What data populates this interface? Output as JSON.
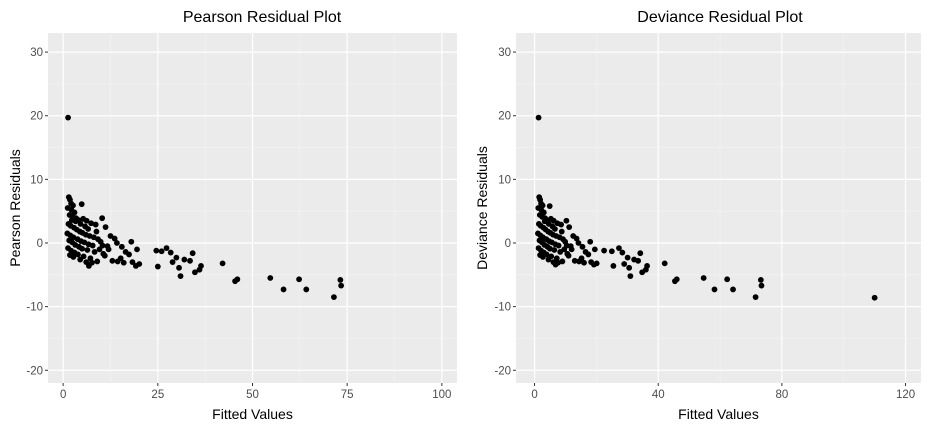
{
  "theme": {
    "panel_background": "#ebebeb",
    "grid_major": "#ffffff",
    "grid_minor": "#f4f4f4",
    "point_color": "#000000",
    "tick_color": "#333333"
  },
  "chart_data": [
    {
      "type": "scatter",
      "title": "Pearson Residual Plot",
      "xlabel": "Fitted Values",
      "ylabel": "Pearson Residuals",
      "xlim": [
        -4,
        104
      ],
      "ylim": [
        -22,
        33
      ],
      "x_ticks": [
        0,
        25,
        50,
        75,
        100
      ],
      "x_tick_labels": [
        "0",
        "25",
        "50",
        "75",
        "100"
      ],
      "y_ticks": [
        -20,
        -10,
        0,
        10,
        20,
        30
      ],
      "y_tick_labels": [
        "-20",
        "-10",
        "0",
        "10",
        "20",
        "30"
      ],
      "grid": true,
      "points": [
        [
          1.3,
          19.7
        ],
        [
          1.5,
          7.2
        ],
        [
          1.8,
          6.8
        ],
        [
          2.1,
          6.2
        ],
        [
          2.6,
          5.9
        ],
        [
          4.9,
          6.1
        ],
        [
          1.2,
          5.5
        ],
        [
          2.2,
          5.2
        ],
        [
          3.0,
          4.8
        ],
        [
          1.7,
          4.4
        ],
        [
          2.5,
          4.1
        ],
        [
          3.4,
          3.9
        ],
        [
          4.1,
          3.6
        ],
        [
          5.3,
          3.8
        ],
        [
          6.2,
          3.5
        ],
        [
          7.4,
          3.1
        ],
        [
          8.6,
          2.9
        ],
        [
          10.3,
          3.9
        ],
        [
          11.2,
          2.5
        ],
        [
          1.4,
          3.0
        ],
        [
          2.0,
          2.7
        ],
        [
          2.9,
          2.4
        ],
        [
          3.6,
          2.1
        ],
        [
          4.4,
          1.8
        ],
        [
          5.1,
          1.6
        ],
        [
          6.0,
          1.3
        ],
        [
          7.0,
          1.1
        ],
        [
          8.1,
          0.9
        ],
        [
          9.2,
          0.6
        ],
        [
          12.5,
          1.1
        ],
        [
          13.6,
          0.7
        ],
        [
          1.1,
          1.5
        ],
        [
          1.9,
          1.2
        ],
        [
          2.7,
          0.9
        ],
        [
          3.8,
          0.6
        ],
        [
          4.7,
          0.3
        ],
        [
          5.6,
          0.1
        ],
        [
          6.7,
          -0.2
        ],
        [
          7.8,
          -0.4
        ],
        [
          9.9,
          0.2
        ],
        [
          11.7,
          -0.5
        ],
        [
          1.6,
          0.4
        ],
        [
          2.4,
          0.1
        ],
        [
          3.2,
          -0.3
        ],
        [
          4.2,
          -0.6
        ],
        [
          5.0,
          -0.9
        ],
        [
          6.4,
          -1.1
        ],
        [
          8.3,
          -1.4
        ],
        [
          10.6,
          -1.7
        ],
        [
          1.3,
          -0.8
        ],
        [
          2.1,
          -1.2
        ],
        [
          3.0,
          -1.5
        ],
        [
          3.9,
          -1.8
        ],
        [
          5.4,
          -2.1
        ],
        [
          7.2,
          -2.4
        ],
        [
          1.8,
          -1.9
        ],
        [
          2.7,
          -2.2
        ],
        [
          4.5,
          -2.6
        ],
        [
          6.1,
          -3.0
        ],
        [
          6.8,
          -3.6
        ],
        [
          7.6,
          -3.1
        ],
        [
          9.0,
          -2.9
        ],
        [
          13.0,
          -2.8
        ],
        [
          14.4,
          -2.9
        ],
        [
          15.2,
          -2.4
        ],
        [
          16.0,
          -3.1
        ],
        [
          18.3,
          -3.0
        ],
        [
          19.2,
          -3.6
        ],
        [
          20.1,
          -3.3
        ],
        [
          16.5,
          -1.4
        ],
        [
          17.4,
          -1.8
        ],
        [
          15.5,
          -0.6
        ],
        [
          14.2,
          0.0
        ],
        [
          19.5,
          -1.0
        ],
        [
          24.6,
          -1.2
        ],
        [
          26.0,
          -1.3
        ],
        [
          27.3,
          -0.8
        ],
        [
          28.4,
          -1.5
        ],
        [
          28.9,
          -3.0
        ],
        [
          25.0,
          -3.7
        ],
        [
          29.9,
          -2.3
        ],
        [
          30.6,
          -3.9
        ],
        [
          31.0,
          -5.2
        ],
        [
          32.0,
          -2.6
        ],
        [
          33.5,
          -2.8
        ],
        [
          34.2,
          -1.6
        ],
        [
          34.8,
          -4.6
        ],
        [
          36.0,
          -4.2
        ],
        [
          36.4,
          -3.6
        ],
        [
          42.1,
          -3.2
        ],
        [
          45.4,
          -6.0
        ],
        [
          46.0,
          -5.7
        ],
        [
          54.7,
          -5.5
        ],
        [
          58.2,
          -7.3
        ],
        [
          62.3,
          -5.7
        ],
        [
          64.2,
          -7.3
        ],
        [
          71.5,
          -8.5
        ],
        [
          73.2,
          -5.8
        ],
        [
          73.4,
          -6.7
        ],
        [
          18.0,
          0.2
        ],
        [
          11.0,
          -2.0
        ],
        [
          12.0,
          -1.0
        ],
        [
          8.8,
          1.8
        ],
        [
          9.6,
          -1.0
        ],
        [
          10.4,
          -0.4
        ],
        [
          6.6,
          2.2
        ],
        [
          5.8,
          2.6
        ],
        [
          4.6,
          3.0
        ],
        [
          3.3,
          3.4
        ],
        [
          2.3,
          3.6
        ]
      ]
    },
    {
      "type": "scatter",
      "title": "Deviance Residual Plot",
      "xlabel": "Fitted Values",
      "ylabel": "Deviance Residuals",
      "xlim": [
        -6,
        125
      ],
      "ylim": [
        -22,
        33
      ],
      "x_ticks": [
        0,
        40,
        80,
        120
      ],
      "x_tick_labels": [
        "0",
        "40",
        "80",
        "120"
      ],
      "y_ticks": [
        -20,
        -10,
        0,
        10,
        20,
        30
      ],
      "y_tick_labels": [
        "-20",
        "-10",
        "0",
        "10",
        "20",
        "30"
      ],
      "grid": true,
      "points": [
        [
          1.3,
          19.7
        ],
        [
          1.5,
          7.2
        ],
        [
          1.8,
          6.8
        ],
        [
          2.1,
          6.2
        ],
        [
          2.6,
          5.9
        ],
        [
          4.9,
          5.8
        ],
        [
          1.2,
          5.5
        ],
        [
          2.2,
          5.2
        ],
        [
          3.0,
          4.8
        ],
        [
          1.7,
          4.4
        ],
        [
          2.5,
          4.1
        ],
        [
          3.4,
          3.9
        ],
        [
          4.1,
          3.6
        ],
        [
          5.3,
          3.8
        ],
        [
          6.2,
          3.5
        ],
        [
          7.4,
          3.1
        ],
        [
          8.6,
          2.9
        ],
        [
          10.3,
          3.5
        ],
        [
          11.2,
          2.5
        ],
        [
          1.4,
          3.0
        ],
        [
          2.0,
          2.7
        ],
        [
          2.9,
          2.4
        ],
        [
          3.6,
          2.1
        ],
        [
          4.4,
          1.8
        ],
        [
          5.1,
          1.6
        ],
        [
          6.0,
          1.3
        ],
        [
          7.0,
          1.1
        ],
        [
          8.1,
          0.9
        ],
        [
          9.2,
          0.6
        ],
        [
          12.5,
          1.1
        ],
        [
          13.6,
          0.7
        ],
        [
          1.1,
          1.5
        ],
        [
          1.9,
          1.2
        ],
        [
          2.7,
          0.9
        ],
        [
          3.8,
          0.6
        ],
        [
          4.7,
          0.3
        ],
        [
          5.6,
          0.1
        ],
        [
          6.7,
          -0.2
        ],
        [
          7.8,
          -0.4
        ],
        [
          9.9,
          0.2
        ],
        [
          11.7,
          -0.5
        ],
        [
          1.6,
          0.4
        ],
        [
          2.4,
          0.1
        ],
        [
          3.2,
          -0.3
        ],
        [
          4.2,
          -0.6
        ],
        [
          5.0,
          -0.9
        ],
        [
          6.4,
          -1.1
        ],
        [
          8.3,
          -1.4
        ],
        [
          10.6,
          -1.7
        ],
        [
          1.3,
          -0.8
        ],
        [
          2.1,
          -1.2
        ],
        [
          3.0,
          -1.5
        ],
        [
          3.9,
          -1.8
        ],
        [
          5.4,
          -2.1
        ],
        [
          7.2,
          -2.4
        ],
        [
          1.8,
          -1.9
        ],
        [
          2.7,
          -2.2
        ],
        [
          4.5,
          -2.6
        ],
        [
          6.1,
          -3.0
        ],
        [
          6.8,
          -3.4
        ],
        [
          7.6,
          -3.1
        ],
        [
          9.0,
          -2.9
        ],
        [
          13.0,
          -2.8
        ],
        [
          14.4,
          -2.9
        ],
        [
          15.2,
          -2.4
        ],
        [
          16.0,
          -3.1
        ],
        [
          18.3,
          -3.0
        ],
        [
          19.2,
          -3.4
        ],
        [
          20.1,
          -3.2
        ],
        [
          16.5,
          -1.4
        ],
        [
          17.4,
          -1.8
        ],
        [
          15.5,
          -0.6
        ],
        [
          14.2,
          0.0
        ],
        [
          19.5,
          -1.0
        ],
        [
          22.5,
          -1.2
        ],
        [
          25.0,
          -1.3
        ],
        [
          27.3,
          -0.8
        ],
        [
          28.4,
          -1.5
        ],
        [
          29.0,
          -3.3
        ],
        [
          25.5,
          -3.6
        ],
        [
          30.1,
          -2.3
        ],
        [
          30.6,
          -3.9
        ],
        [
          31.0,
          -5.2
        ],
        [
          32.2,
          -2.6
        ],
        [
          33.5,
          -2.8
        ],
        [
          34.2,
          -1.6
        ],
        [
          34.8,
          -4.6
        ],
        [
          36.0,
          -4.2
        ],
        [
          36.4,
          -3.6
        ],
        [
          42.1,
          -3.2
        ],
        [
          45.4,
          -6.0
        ],
        [
          46.0,
          -5.7
        ],
        [
          54.7,
          -5.5
        ],
        [
          58.2,
          -7.3
        ],
        [
          62.3,
          -5.7
        ],
        [
          64.2,
          -7.3
        ],
        [
          71.5,
          -8.5
        ],
        [
          73.2,
          -5.8
        ],
        [
          73.4,
          -6.7
        ],
        [
          110.0,
          -8.6
        ],
        [
          18.0,
          0.2
        ],
        [
          11.0,
          -2.0
        ],
        [
          12.0,
          -1.0
        ],
        [
          8.8,
          1.8
        ],
        [
          9.6,
          -1.0
        ],
        [
          10.4,
          -0.4
        ],
        [
          6.6,
          2.2
        ],
        [
          5.8,
          2.6
        ],
        [
          4.6,
          3.0
        ],
        [
          3.3,
          3.4
        ]
      ]
    }
  ]
}
